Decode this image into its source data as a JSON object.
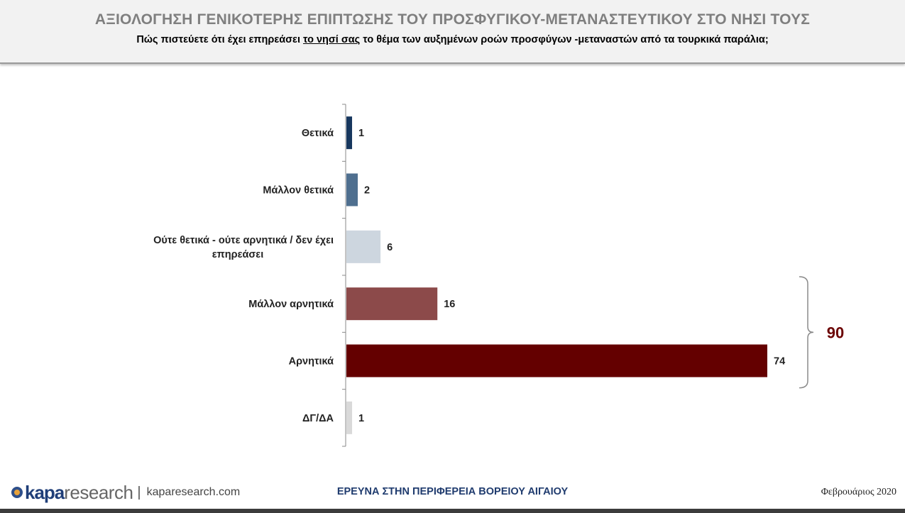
{
  "header": {
    "title": "ΑΞΙΟΛΟΓΗΣΗ ΓΕΝΙΚΟΤΕΡΗΣ ΕΠΙΠΤΩΣΗΣ ΤΟΥ ΠΡΟΣΦΥΓΙΚΟΥ-ΜΕΤΑΝΑΣΤΕΥΤΙΚΟΥ ΣΤΟ ΝΗΣΙ ΤΟΥΣ",
    "subtitle_before": "Πώς πιστεύετε ότι έχει επηρεάσει ",
    "subtitle_underlined": "το νησί σας",
    "subtitle_after": " το θέμα των αυξημένων ροών προσφύγων -μεταναστών από τα τουρκικά παράλια;"
  },
  "chart_data": {
    "type": "bar",
    "orientation": "horizontal",
    "title": "ΑΞΙΟΛΟΓΗΣΗ ΓΕΝΙΚΟΤΕΡΗΣ ΕΠΙΠΤΩΣΗΣ ΤΟΥ ΠΡΟΣΦΥΓΙΚΟΥ-ΜΕΤΑΝΑΣΤΕΥΤΙΚΟΥ ΣΤΟ ΝΗΣΙ ΤΟΥΣ",
    "categories": [
      [
        "Θετικά"
      ],
      [
        "Μάλλον θετικά"
      ],
      [
        "Ούτε θετικά - ούτε αρνητικά / δεν έχει",
        "επηρεάσει"
      ],
      [
        "Μάλλον αρνητικά"
      ],
      [
        "Αρνητικά"
      ],
      [
        "ΔΓ/ΔΑ"
      ]
    ],
    "values": [
      1,
      2,
      6,
      16,
      74,
      1
    ],
    "colors": [
      "#17375e",
      "#4f6f8f",
      "#cdd6df",
      "#8c4a4a",
      "#640000",
      "#d9d9d9"
    ],
    "xlim": [
      0,
      74
    ],
    "grouped_total": {
      "label": "90",
      "categories": [
        "Μάλλον αρνητικά",
        "Αρνητικά"
      ]
    },
    "xlabel": "",
    "ylabel": ""
  },
  "footer": {
    "logo_kapa": "kapa",
    "logo_research": "research",
    "separator": "|",
    "website": "kaparesearch.com",
    "center_text": "ΕΡΕΥΝΑ ΣΤΗΝ ΠΕΡΙΦΕΡΕΙΑ ΒΟΡΕΙΟΥ ΑΙΓΑΙΟΥ",
    "date": "Φεβρουάριος 2020"
  }
}
